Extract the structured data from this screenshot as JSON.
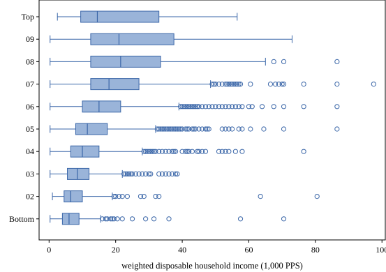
{
  "chart_data": {
    "type": "boxplot",
    "orientation": "horizontal",
    "xlabel": "weighted disposable household income (1,000 PPS)",
    "ylabel": "",
    "xlim": [
      -3,
      101
    ],
    "xticks": [
      0,
      20,
      40,
      60,
      80,
      100
    ],
    "grid": false,
    "legend": "none",
    "colors": {
      "box_fill": "#9ab4d9",
      "box_stroke": "#3a66a8",
      "outlier": "#3a66a8",
      "axis": "#000000"
    },
    "categories": [
      "Top",
      "09",
      "08",
      "07",
      "06",
      "05",
      "04",
      "03",
      "02",
      "Bottom"
    ],
    "boxes": [
      {
        "label": "Top",
        "whislo": 2.5,
        "q1": 9.5,
        "med": 14.5,
        "q3": 33,
        "whishi": 56.5,
        "fliers": []
      },
      {
        "label": "09",
        "whislo": 0.3,
        "q1": 12.5,
        "med": 21,
        "q3": 37.5,
        "whishi": 73,
        "fliers": []
      },
      {
        "label": "08",
        "whislo": 0.3,
        "q1": 12.5,
        "med": 21.5,
        "q3": 33.5,
        "whishi": 65,
        "fliers": [
          67.5,
          70.5,
          86.5
        ]
      },
      {
        "label": "07",
        "whislo": 0.3,
        "q1": 12.5,
        "med": 18,
        "q3": 27,
        "whishi": 48.5,
        "fliers": [
          49,
          49.5,
          50,
          51,
          52,
          53,
          53.5,
          54,
          54.5,
          55,
          55.5,
          56,
          56.5,
          57,
          57.5,
          60.5,
          66.5,
          68,
          69,
          70,
          70.5,
          76.5,
          86.5,
          97.5
        ]
      },
      {
        "label": "06",
        "whislo": 0.3,
        "q1": 10,
        "med": 15,
        "q3": 21.5,
        "whishi": 39,
        "fliers": [
          39.5,
          40,
          40.5,
          41,
          41.5,
          42,
          42.5,
          43,
          43.5,
          44,
          44.5,
          45,
          46,
          47,
          48,
          49,
          50,
          51,
          52,
          53,
          54,
          55,
          56,
          57,
          58,
          60,
          61,
          64,
          67.5,
          70.5,
          76.5,
          86.5
        ]
      },
      {
        "label": "05",
        "whislo": 0.3,
        "q1": 8,
        "med": 11.5,
        "q3": 17.5,
        "whishi": 32,
        "fliers": [
          32.5,
          33,
          33.5,
          34,
          34.5,
          35,
          35.5,
          36,
          36.5,
          37,
          37.5,
          38,
          38.5,
          39,
          39.5,
          40,
          41,
          41.5,
          42,
          43,
          43.5,
          44,
          45,
          46,
          47,
          47.5,
          48,
          52,
          53,
          54,
          55,
          57,
          58,
          60.5,
          64.5,
          70.5,
          86.5
        ]
      },
      {
        "label": "04",
        "whislo": 0.3,
        "q1": 6.5,
        "med": 10,
        "q3": 15,
        "whishi": 28,
        "fliers": [
          28.5,
          29,
          29.5,
          30,
          30.5,
          31,
          31.5,
          32,
          33,
          34,
          35,
          36,
          37,
          37.5,
          38,
          40,
          41,
          41.5,
          42,
          43,
          44.5,
          45,
          46,
          47,
          51,
          52,
          53,
          54,
          56,
          58,
          76.5
        ]
      },
      {
        "label": "03",
        "whislo": 0.3,
        "q1": 5.5,
        "med": 8.5,
        "q3": 12,
        "whishi": 22,
        "fliers": [
          22.5,
          23,
          23.5,
          24,
          24.5,
          25,
          26,
          27,
          28,
          29,
          30,
          30.5,
          33,
          34,
          35,
          36,
          37,
          38,
          38.5
        ]
      },
      {
        "label": "02",
        "whislo": 1,
        "q1": 4.5,
        "med": 6.5,
        "q3": 10,
        "whishi": 19,
        "fliers": [
          19.5,
          20,
          21,
          22,
          23.5,
          27.5,
          28.5,
          32,
          33,
          63.5,
          80.5
        ]
      },
      {
        "label": "Bottom",
        "whislo": 0.3,
        "q1": 4,
        "med": 6,
        "q3": 9,
        "whishi": 15.5,
        "fliers": [
          16,
          17,
          17.5,
          18.5,
          19,
          19.5,
          20.5,
          22,
          25,
          29,
          31.5,
          36,
          57.5,
          70.5
        ]
      }
    ]
  }
}
